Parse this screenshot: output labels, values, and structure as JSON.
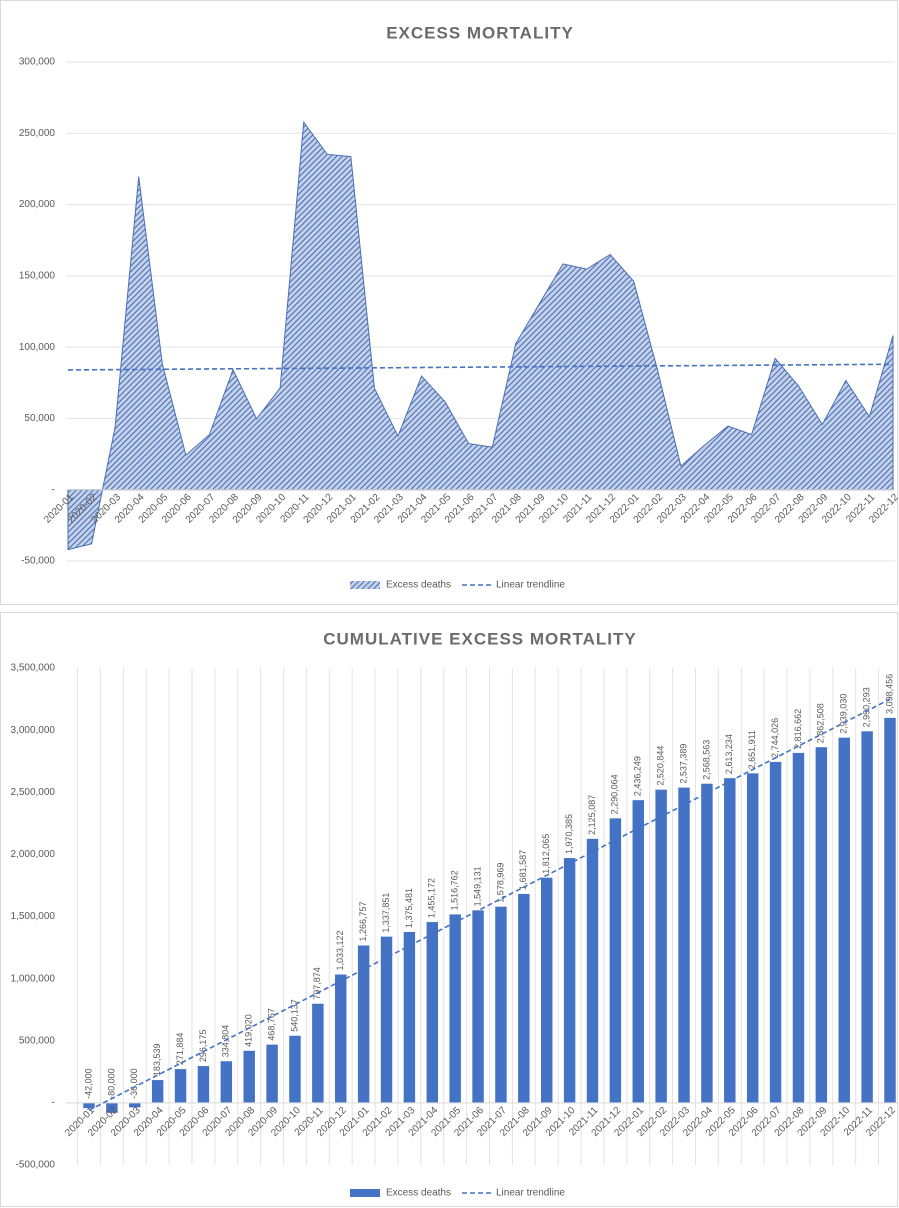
{
  "chart_data": [
    {
      "type": "area",
      "title": "EXCESS MORTALITY",
      "categories": [
        "2020-01",
        "2020-02",
        "2020-03",
        "2020-04",
        "2020-05",
        "2020-06",
        "2020-07",
        "2020-08",
        "2020-09",
        "2020-10",
        "2020-11",
        "2020-12",
        "2021-01",
        "2021-02",
        "2021-03",
        "2021-04",
        "2021-05",
        "2021-06",
        "2021-07",
        "2021-08",
        "2021-09",
        "2021-10",
        "2021-11",
        "2021-12",
        "2022-01",
        "2022-02",
        "2022-03",
        "2022-04",
        "2022-05",
        "2022-06",
        "2022-07",
        "2022-08",
        "2022-09",
        "2022-10",
        "2022-11",
        "2022-12"
      ],
      "series": [
        {
          "name": "Excess deaths",
          "color": "#4a6fb5",
          "values": [
            -42000,
            -38000,
            44000,
            219539,
            88345,
            24291,
            38629,
            84216,
            49747,
            71370,
            257737,
            235248,
            233635,
            71094,
            37630,
            79691,
            61590,
            32369,
            29838,
            102618,
            130478,
            158320,
            154702,
            164977,
            146185,
            84595,
            16545,
            31174,
            44671,
            38677,
            92115,
            72636,
            45846,
            76522,
            51263,
            108163
          ]
        }
      ],
      "trendline": {
        "name": "Linear trendline",
        "color": "#4472c4",
        "values": [
          84000,
          88000
        ]
      },
      "ylim": [
        -50000,
        300000
      ],
      "yticks": [
        {
          "value": -50000,
          "label": "-50,000"
        },
        {
          "value": 0,
          "label": "-"
        },
        {
          "value": 50000,
          "label": "50,000"
        },
        {
          "value": 100000,
          "label": "100,000"
        },
        {
          "value": 150000,
          "label": "150,000"
        },
        {
          "value": 200000,
          "label": "200,000"
        },
        {
          "value": 250000,
          "label": "250,000"
        },
        {
          "value": 300000,
          "label": "300,000"
        }
      ],
      "grid": true
    },
    {
      "type": "bar",
      "title": "CUMULATIVE EXCESS MORTALITY",
      "categories": [
        "2020-01",
        "2020-02",
        "2020-03",
        "2020-04",
        "2020-05",
        "2020-06",
        "2020-07",
        "2020-08",
        "2020-09",
        "2020-10",
        "2020-11",
        "2020-12",
        "2021-01",
        "2021-02",
        "2021-03",
        "2021-04",
        "2021-05",
        "2021-06",
        "2021-07",
        "2021-08",
        "2021-09",
        "2021-10",
        "2021-11",
        "2021-12",
        "2022-01",
        "2022-02",
        "2022-03",
        "2022-04",
        "2022-05",
        "2022-06",
        "2022-07",
        "2022-08",
        "2022-09",
        "2022-10",
        "2022-11",
        "2022-12"
      ],
      "series": [
        {
          "name": "Excess deaths",
          "color": "#4472c4",
          "values": [
            -42000,
            -80000,
            -36000,
            183539,
            271884,
            296175,
            334804,
            419020,
            468767,
            540137,
            797874,
            1033122,
            1266757,
            1337851,
            1375481,
            1455172,
            1516762,
            1549131,
            1578969,
            1681587,
            1812065,
            1970385,
            2125087,
            2290064,
            2436249,
            2520844,
            2537389,
            2568563,
            2613234,
            2651911,
            2744026,
            2816662,
            2862508,
            2939030,
            2990293,
            3098456
          ],
          "value_labels": [
            "-42,000",
            "-80,000",
            "-36,000",
            "183,539",
            "271,884",
            "296,175",
            "334,804",
            "419,020",
            "468,767",
            "540,137",
            "797,874",
            "1,033,122",
            "1,266,757",
            "1,337,851",
            "1,375,481",
            "1,455,172",
            "1,516,762",
            "1,549,131",
            "1,578,969",
            "1,681,587",
            "1,812,065",
            "1,970,385",
            "2,125,087",
            "2,290,064",
            "2,436,249",
            "2,520,844",
            "2,537,389",
            "2,568,563",
            "2,613,234",
            "2,651,911",
            "2,744,026",
            "2,816,662",
            "2,862,508",
            "2,939,030",
            "2,990,293",
            "3,098,456"
          ]
        }
      ],
      "trendline": {
        "name": "Linear trendline",
        "color": "#4472c4",
        "values": [
          -60000,
          3250000
        ]
      },
      "ylim": [
        -500000,
        3500000
      ],
      "yticks": [
        {
          "value": -500000,
          "label": "-500,000"
        },
        {
          "value": 0,
          "label": "-"
        },
        {
          "value": 500000,
          "label": "500,000"
        },
        {
          "value": 1000000,
          "label": "1,000,000"
        },
        {
          "value": 1500000,
          "label": "1,500,000"
        },
        {
          "value": 2000000,
          "label": "2,000,000"
        },
        {
          "value": 2500000,
          "label": "2,500,000"
        },
        {
          "value": 3000000,
          "label": "3,000,000"
        },
        {
          "value": 3500000,
          "label": "3,500,000"
        }
      ],
      "grid": true
    }
  ]
}
